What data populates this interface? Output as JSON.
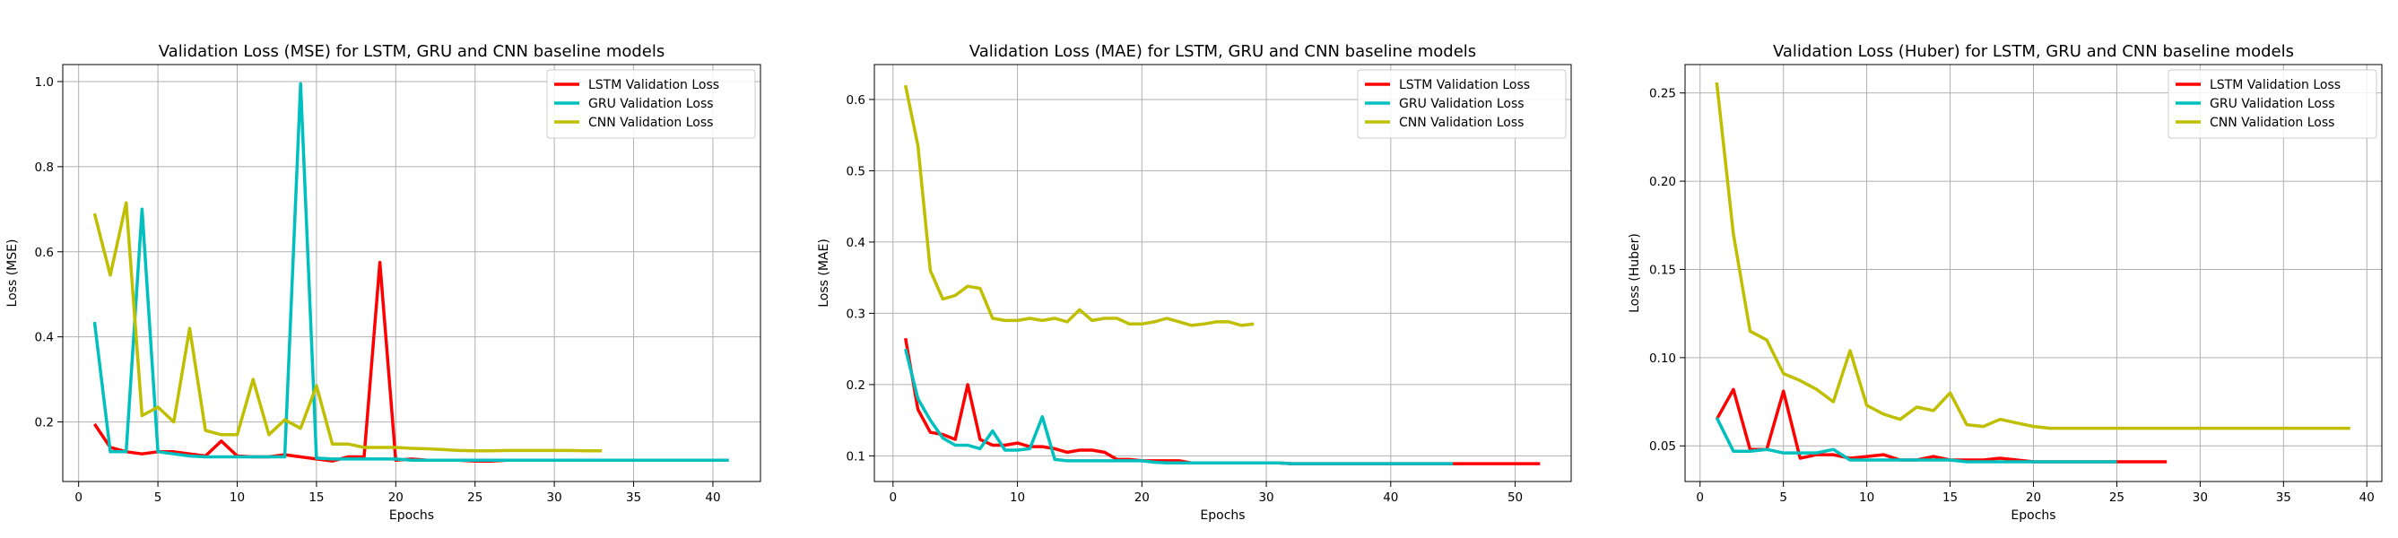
{
  "chart_data": [
    {
      "type": "line",
      "title": "Validation Loss (MSE) for LSTM, GRU and CNN baseline models",
      "xlabel": "Epochs",
      "ylabel": "Loss (MSE)",
      "xlim": [
        -1,
        43
      ],
      "ylim": [
        0.06,
        1.04
      ],
      "xticks": [
        0,
        5,
        10,
        15,
        20,
        25,
        30,
        35,
        40
      ],
      "yticks": [
        0.2,
        0.4,
        0.6,
        0.8,
        1.0
      ],
      "yprec": 1,
      "grid": true,
      "legend": "top-right",
      "series": [
        {
          "name": "LSTM Validation Loss",
          "color": "#ff0000",
          "x": [
            1,
            2,
            3,
            4,
            5,
            6,
            7,
            8,
            9,
            10,
            11,
            12,
            13,
            14,
            15,
            16,
            17,
            18,
            19,
            20,
            21,
            22,
            23,
            24,
            25,
            26,
            27,
            28,
            29,
            30,
            31,
            32,
            33,
            34,
            35,
            36,
            37,
            38,
            39,
            40,
            41
          ],
          "y": [
            0.195,
            0.14,
            0.13,
            0.125,
            0.13,
            0.13,
            0.125,
            0.12,
            0.155,
            0.12,
            0.118,
            0.118,
            0.123,
            0.118,
            0.113,
            0.108,
            0.118,
            0.118,
            0.575,
            0.11,
            0.113,
            0.11,
            0.11,
            0.11,
            0.108,
            0.108,
            0.11,
            0.11,
            0.11,
            0.11,
            0.11,
            0.11,
            0.11,
            0.11,
            0.11,
            0.11,
            0.11,
            0.11,
            0.11,
            0.11,
            0.11
          ]
        },
        {
          "name": "GRU Validation Loss",
          "color": "#00bfbf",
          "x": [
            1,
            2,
            3,
            4,
            5,
            6,
            7,
            8,
            9,
            10,
            11,
            12,
            13,
            14,
            15,
            16,
            17,
            18,
            19,
            20,
            21,
            22,
            23,
            24,
            25,
            26,
            27,
            28,
            29,
            30,
            31,
            32,
            33,
            34,
            35,
            36,
            37,
            38,
            39,
            40,
            41
          ],
          "y": [
            0.435,
            0.13,
            0.13,
            0.7,
            0.13,
            0.125,
            0.12,
            0.118,
            0.118,
            0.118,
            0.118,
            0.118,
            0.118,
            0.995,
            0.115,
            0.113,
            0.113,
            0.113,
            0.113,
            0.113,
            0.11,
            0.11,
            0.11,
            0.11,
            0.11,
            0.11,
            0.11,
            0.11,
            0.11,
            0.11,
            0.11,
            0.11,
            0.11,
            0.11,
            0.11,
            0.11,
            0.11,
            0.11,
            0.11,
            0.11,
            0.11
          ]
        },
        {
          "name": "CNN Validation Loss",
          "color": "#bfbf00",
          "x": [
            1,
            2,
            3,
            4,
            5,
            6,
            7,
            8,
            9,
            10,
            11,
            12,
            13,
            14,
            15,
            16,
            17,
            18,
            19,
            20,
            21,
            22,
            23,
            24,
            25,
            26,
            27,
            28,
            29,
            30,
            31,
            32,
            33
          ],
          "y": [
            0.69,
            0.545,
            0.715,
            0.215,
            0.235,
            0.2,
            0.42,
            0.18,
            0.17,
            0.17,
            0.3,
            0.17,
            0.205,
            0.185,
            0.285,
            0.148,
            0.148,
            0.14,
            0.14,
            0.14,
            0.138,
            0.137,
            0.135,
            0.133,
            0.132,
            0.132,
            0.133,
            0.133,
            0.133,
            0.133,
            0.133,
            0.132,
            0.132
          ]
        }
      ]
    },
    {
      "type": "line",
      "title": "Validation Loss (MAE) for LSTM, GRU and CNN baseline models",
      "xlabel": "Epochs",
      "ylabel": "Loss (MAE)",
      "xlim": [
        -1.5,
        54.5
      ],
      "ylim": [
        0.064,
        0.649
      ],
      "xticks": [
        0,
        10,
        20,
        30,
        40,
        50
      ],
      "yticks": [
        0.1,
        0.2,
        0.3,
        0.4,
        0.5,
        0.6
      ],
      "yprec": 1,
      "grid": true,
      "legend": "top-right",
      "series": [
        {
          "name": "LSTM Validation Loss",
          "color": "#ff0000",
          "x": [
            1,
            2,
            3,
            4,
            5,
            6,
            7,
            8,
            9,
            10,
            11,
            12,
            13,
            14,
            15,
            16,
            17,
            18,
            19,
            20,
            21,
            22,
            23,
            24,
            25,
            26,
            27,
            28,
            29,
            30,
            31,
            32,
            33,
            34,
            35,
            36,
            37,
            38,
            39,
            40,
            41,
            42,
            43,
            44,
            45,
            46,
            47,
            48,
            49,
            50,
            51,
            52
          ],
          "y": [
            0.265,
            0.165,
            0.133,
            0.13,
            0.123,
            0.2,
            0.123,
            0.115,
            0.115,
            0.118,
            0.113,
            0.113,
            0.11,
            0.105,
            0.108,
            0.108,
            0.105,
            0.095,
            0.095,
            0.093,
            0.093,
            0.093,
            0.093,
            0.09,
            0.09,
            0.09,
            0.09,
            0.09,
            0.09,
            0.09,
            0.09,
            0.089,
            0.089,
            0.089,
            0.089,
            0.089,
            0.089,
            0.089,
            0.089,
            0.089,
            0.089,
            0.089,
            0.089,
            0.089,
            0.089,
            0.089,
            0.089,
            0.089,
            0.089,
            0.089,
            0.089,
            0.089
          ]
        },
        {
          "name": "GRU Validation Loss",
          "color": "#00bfbf",
          "x": [
            1,
            2,
            3,
            4,
            5,
            6,
            7,
            8,
            9,
            10,
            11,
            12,
            13,
            14,
            15,
            16,
            17,
            18,
            19,
            20,
            21,
            22,
            23,
            24,
            25,
            26,
            27,
            28,
            29,
            30,
            31,
            32,
            33,
            34,
            35,
            36,
            37,
            38,
            39,
            40,
            41,
            42,
            43,
            44,
            45
          ],
          "y": [
            0.25,
            0.18,
            0.15,
            0.125,
            0.115,
            0.115,
            0.11,
            0.135,
            0.108,
            0.108,
            0.11,
            0.155,
            0.095,
            0.093,
            0.093,
            0.093,
            0.093,
            0.093,
            0.093,
            0.093,
            0.091,
            0.09,
            0.09,
            0.09,
            0.09,
            0.09,
            0.09,
            0.09,
            0.09,
            0.09,
            0.09,
            0.089,
            0.089,
            0.089,
            0.089,
            0.089,
            0.089,
            0.089,
            0.089,
            0.089,
            0.089,
            0.089,
            0.089,
            0.089,
            0.089
          ]
        },
        {
          "name": "CNN Validation Loss",
          "color": "#bfbf00",
          "x": [
            1,
            2,
            3,
            4,
            5,
            6,
            7,
            8,
            9,
            10,
            11,
            12,
            13,
            14,
            15,
            16,
            17,
            18,
            19,
            20,
            21,
            22,
            23,
            24,
            25,
            26,
            27,
            28,
            29
          ],
          "y": [
            0.62,
            0.535,
            0.36,
            0.32,
            0.325,
            0.338,
            0.335,
            0.293,
            0.29,
            0.29,
            0.293,
            0.29,
            0.293,
            0.288,
            0.305,
            0.29,
            0.293,
            0.293,
            0.285,
            0.285,
            0.288,
            0.293,
            0.288,
            0.283,
            0.285,
            0.288,
            0.288,
            0.283,
            0.285
          ]
        }
      ]
    },
    {
      "type": "line",
      "title": "Validation Loss (Huber) for LSTM, GRU and CNN baseline models",
      "xlabel": "Epochs",
      "ylabel": "Loss (Huber)",
      "xlim": [
        -0.9,
        40.9
      ],
      "ylim": [
        0.0298,
        0.2661
      ],
      "xticks": [
        0,
        5,
        10,
        15,
        20,
        25,
        30,
        35,
        40
      ],
      "yticks": [
        0.05,
        0.1,
        0.15,
        0.2,
        0.25
      ],
      "yprec": 2,
      "grid": true,
      "legend": "top-right",
      "series": [
        {
          "name": "LSTM Validation Loss",
          "color": "#ff0000",
          "x": [
            1,
            2,
            3,
            4,
            5,
            6,
            7,
            8,
            9,
            10,
            11,
            12,
            13,
            14,
            15,
            16,
            17,
            18,
            19,
            20,
            21,
            22,
            23,
            24,
            25,
            26,
            27,
            28
          ],
          "y": [
            0.065,
            0.082,
            0.048,
            0.048,
            0.081,
            0.043,
            0.045,
            0.045,
            0.043,
            0.044,
            0.045,
            0.042,
            0.042,
            0.044,
            0.042,
            0.042,
            0.042,
            0.043,
            0.042,
            0.041,
            0.041,
            0.041,
            0.041,
            0.041,
            0.041,
            0.041,
            0.041,
            0.041
          ]
        },
        {
          "name": "GRU Validation Loss",
          "color": "#00bfbf",
          "x": [
            1,
            2,
            3,
            4,
            5,
            6,
            7,
            8,
            9,
            10,
            11,
            12,
            13,
            14,
            15,
            16,
            17,
            18,
            19,
            20,
            21,
            22,
            23,
            24,
            25
          ],
          "y": [
            0.066,
            0.047,
            0.047,
            0.048,
            0.046,
            0.046,
            0.046,
            0.048,
            0.042,
            0.042,
            0.042,
            0.042,
            0.042,
            0.042,
            0.042,
            0.041,
            0.041,
            0.041,
            0.041,
            0.041,
            0.041,
            0.041,
            0.041,
            0.041,
            0.041
          ]
        },
        {
          "name": "CNN Validation Loss",
          "color": "#bfbf00",
          "x": [
            1,
            2,
            3,
            4,
            5,
            6,
            7,
            8,
            9,
            10,
            11,
            12,
            13,
            14,
            15,
            16,
            17,
            18,
            19,
            20,
            21,
            22,
            23,
            24,
            25,
            26,
            27,
            28,
            29,
            30,
            31,
            32,
            33,
            34,
            35,
            36,
            37,
            38,
            39
          ],
          "y": [
            0.256,
            0.17,
            0.115,
            0.11,
            0.091,
            0.087,
            0.082,
            0.075,
            0.104,
            0.073,
            0.068,
            0.065,
            0.072,
            0.07,
            0.08,
            0.062,
            0.061,
            0.065,
            0.063,
            0.061,
            0.06,
            0.06,
            0.06,
            0.06,
            0.06,
            0.06,
            0.06,
            0.06,
            0.06,
            0.06,
            0.06,
            0.06,
            0.06,
            0.06,
            0.06,
            0.06,
            0.06,
            0.06,
            0.06
          ]
        }
      ]
    }
  ]
}
